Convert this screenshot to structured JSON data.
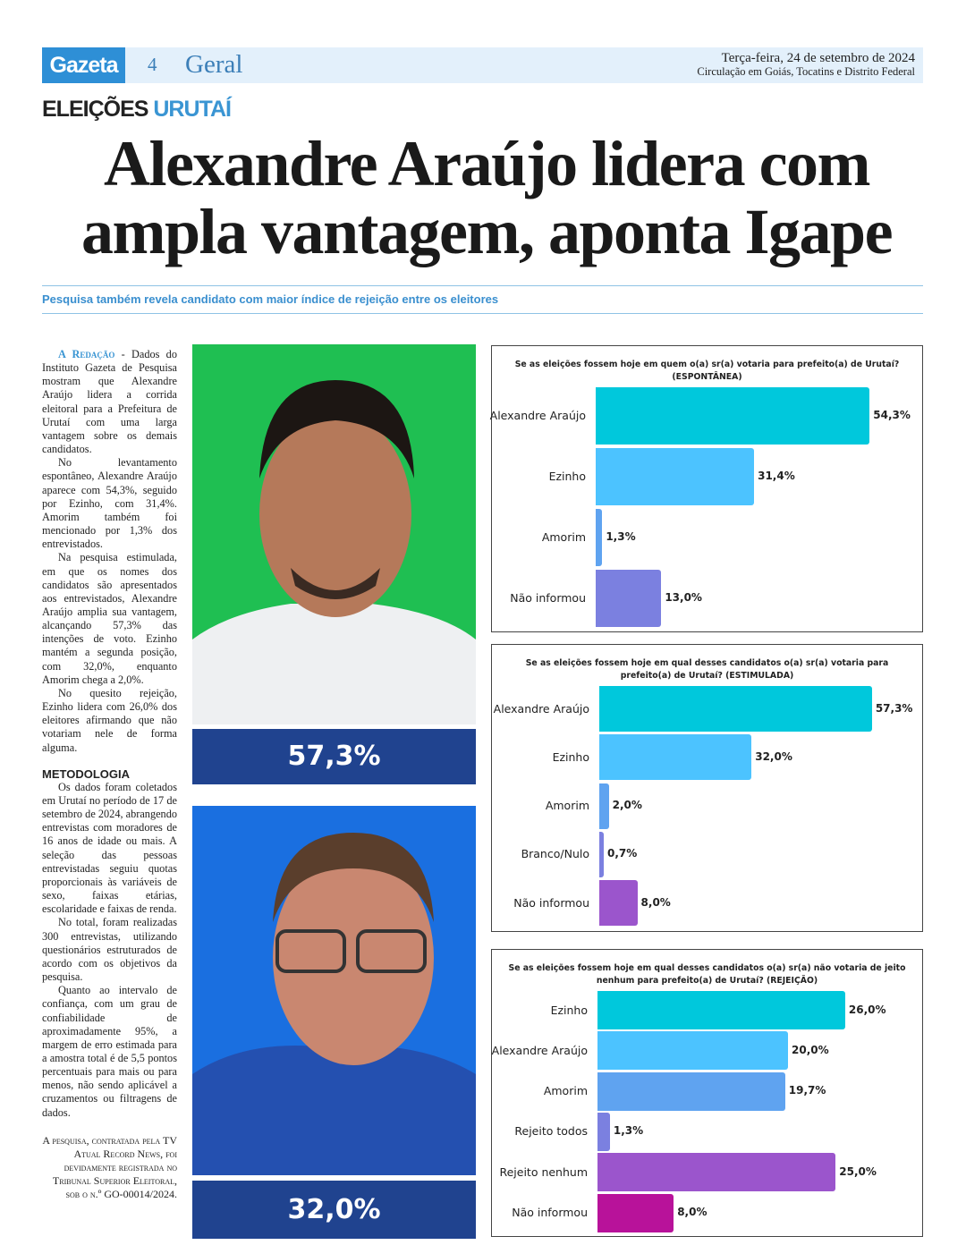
{
  "masthead": {
    "logo": "Gazeta",
    "page": "4",
    "section": "Geral",
    "date": "Terça-feira, 24 de setembro de 2024",
    "circulation": "Circulação em Goiás, Tocatins e Distrito Federal"
  },
  "kicker": {
    "part1": "ELEIÇÕES",
    "part2": "URUTAÍ"
  },
  "headline": "Alexandre Araújo lidera com ampla vantagem, aponta Igape",
  "deck": "Pesquisa também revela candidato com maior índice de rejeição entre os eleitores",
  "body": {
    "lead": "A Redação",
    "p1": " - Dados do Instituto Gazeta de Pesquisa mostram que Alexandre Araújo lidera a corrida eleitoral para a Prefeitura de Urutaí com uma larga vantagem sobre os demais candidatos.",
    "p2": "No levantamento espontâneo, Alexandre Araújo aparece com 54,3%, seguido por Ezinho, com 31,4%. Amorim também foi mencionado por 1,3% dos entrevistados.",
    "p3": "Na pesquisa estimulada, em que os nomes dos candidatos são apresentados aos entrevistados, Alexandre Araújo amplia sua vantagem, alcançando 57,3% das intenções de voto. Ezinho mantém a segunda posição, com 32,0%, enquanto Amorim chega a 2,0%.",
    "p4": "No quesito rejeição, Ezinho lidera com 26,0% dos eleitores afirmando que não votariam nele de forma alguma.",
    "method_title": "METODOLOGIA",
    "m1": "Os dados foram coletados em Urutaí no período de 17 de setembro de 2024, abrangendo entrevistas com moradores de 16 anos de idade ou mais. A seleção das pessoas entrevistadas seguiu quotas proporcionais às variáveis de sexo, faixas etárias, escolaridade e faixas de renda.",
    "m2": "No total, foram realizadas 300 entrevistas, utilizando questionários estruturados de acordo com os objetivos da pesquisa.",
    "m3": "Quanto ao intervalo de confiança, com um grau de confiabilidade de aproximadamente 95%, a margem de erro estimada para a amostra total é de 5,5 pontos percentuais para mais ou para menos, não sendo aplicável a cruzamentos ou filtragens de dados.",
    "note": "A pesquisa, contratada pela TV Atual Record News, foi devidamente registrada no Tribunal Superior Eleitoral, sob o n.º GO-00014/2024."
  },
  "photos": [
    {
      "caption": "57,3%",
      "bg": "#1fbf52"
    },
    {
      "caption": "32,0%",
      "bg": "#1a6fe0"
    }
  ],
  "chart_data": [
    {
      "type": "bar",
      "title": "Se as eleições fossem hoje em quem o(a) sr(a) votaria para prefeito(a) de Urutaí? (ESPONTÂNEA)",
      "categories": [
        "Alexandre Araújo",
        "Ezinho",
        "Amorim",
        "Não informou"
      ],
      "values": [
        54.3,
        31.4,
        1.3,
        13.0
      ],
      "labels": [
        "54,3%",
        "31,4%",
        "1,3%",
        "13,0%"
      ],
      "colors": [
        "#00c8dc",
        "#4cc3ff",
        "#5fa3f0",
        "#7b80e0"
      ]
    },
    {
      "type": "bar",
      "title": "Se as eleições fossem hoje em qual desses candidatos o(a) sr(a) votaria para prefeito(a) de Urutaí? (ESTIMULADA)",
      "categories": [
        "Alexandre Araújo",
        "Ezinho",
        "Amorim",
        "Branco/Nulo",
        "Não informou"
      ],
      "values": [
        57.3,
        32.0,
        2.0,
        0.7,
        8.0
      ],
      "labels": [
        "57,3%",
        "32,0%",
        "2,0%",
        "0,7%",
        "8,0%"
      ],
      "colors": [
        "#00c8dc",
        "#4cc3ff",
        "#5fa3f0",
        "#7b80e0",
        "#9b55cc"
      ]
    },
    {
      "type": "bar",
      "title": "Se as eleições fossem hoje em qual desses candidatos o(a) sr(a) não votaria de jeito nenhum para prefeito(a) de Urutaí? (REJEIÇÃO)",
      "categories": [
        "Ezinho",
        "Alexandre Araújo",
        "Amorim",
        "Rejeito todos",
        "Rejeito nenhum",
        "Não informou"
      ],
      "values": [
        26.0,
        20.0,
        19.7,
        1.3,
        25.0,
        8.0
      ],
      "labels": [
        "26,0%",
        "20,0%",
        "19,7%",
        "1,3%",
        "25,0%",
        "8,0%"
      ],
      "colors": [
        "#00c8dc",
        "#4cc3ff",
        "#5fa3f0",
        "#7b80e0",
        "#9b55cc",
        "#b8129a"
      ]
    }
  ]
}
